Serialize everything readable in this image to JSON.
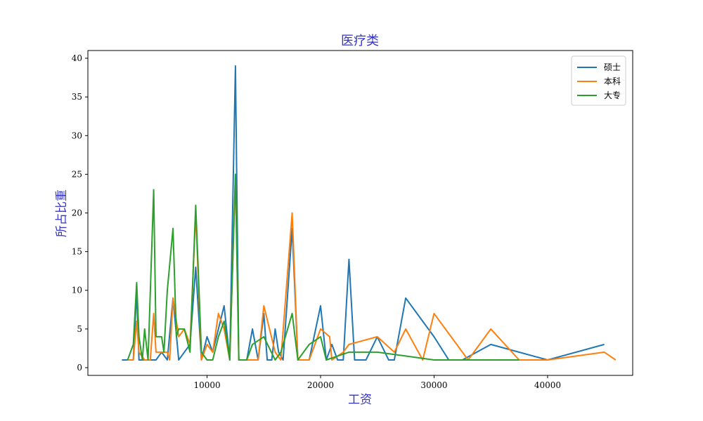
{
  "chart_data": {
    "type": "line",
    "title": "医疗类",
    "xlabel": "工资",
    "ylabel": "所占比重",
    "xlim": [
      -500,
      47500
    ],
    "ylim": [
      -1,
      41
    ],
    "xticks": [
      10000,
      20000,
      30000,
      40000
    ],
    "yticks": [
      0,
      5,
      10,
      15,
      20,
      25,
      30,
      35,
      40
    ],
    "grid": false,
    "legend_position": "top-right",
    "series": [
      {
        "name": "硕士",
        "color": "#1f77b4",
        "points": [
          [
            2500,
            1
          ],
          [
            3000,
            1
          ],
          [
            3500,
            1
          ],
          [
            3800,
            10
          ],
          [
            4000,
            1
          ],
          [
            4500,
            1
          ],
          [
            5000,
            1
          ],
          [
            5500,
            1
          ],
          [
            6000,
            2
          ],
          [
            6500,
            1
          ],
          [
            7000,
            9
          ],
          [
            7500,
            1
          ],
          [
            8000,
            2
          ],
          [
            8500,
            3
          ],
          [
            9000,
            13
          ],
          [
            9500,
            1
          ],
          [
            10000,
            4
          ],
          [
            10500,
            2
          ],
          [
            11000,
            5
          ],
          [
            11500,
            8
          ],
          [
            12000,
            1
          ],
          [
            12500,
            39
          ],
          [
            12800,
            1
          ],
          [
            13500,
            1
          ],
          [
            14000,
            5
          ],
          [
            14500,
            1
          ],
          [
            15000,
            7
          ],
          [
            15300,
            1
          ],
          [
            15700,
            1
          ],
          [
            16000,
            5
          ],
          [
            16300,
            2
          ],
          [
            16700,
            1
          ],
          [
            17500,
            18
          ],
          [
            18000,
            1
          ],
          [
            19000,
            1
          ],
          [
            20000,
            8
          ],
          [
            20500,
            1
          ],
          [
            21000,
            3
          ],
          [
            21500,
            1
          ],
          [
            22000,
            1
          ],
          [
            22500,
            14
          ],
          [
            23000,
            1
          ],
          [
            24000,
            1
          ],
          [
            25000,
            4
          ],
          [
            26000,
            1
          ],
          [
            26500,
            1
          ],
          [
            27500,
            9
          ],
          [
            30000,
            4
          ],
          [
            31300,
            1
          ],
          [
            32500,
            1
          ],
          [
            35000,
            3
          ],
          [
            40000,
            1
          ],
          [
            45000,
            3
          ]
        ]
      },
      {
        "name": "本科",
        "color": "#ff7f0e",
        "points": [
          [
            3000,
            1
          ],
          [
            3500,
            1
          ],
          [
            3800,
            6
          ],
          [
            4000,
            2
          ],
          [
            4500,
            1
          ],
          [
            5000,
            1
          ],
          [
            5300,
            7
          ],
          [
            5500,
            2
          ],
          [
            6000,
            2
          ],
          [
            6500,
            2
          ],
          [
            6700,
            1
          ],
          [
            7000,
            9
          ],
          [
            7500,
            4
          ],
          [
            8000,
            5
          ],
          [
            8500,
            3
          ],
          [
            9000,
            20
          ],
          [
            9500,
            1
          ],
          [
            10000,
            3
          ],
          [
            10500,
            2
          ],
          [
            11000,
            7
          ],
          [
            11500,
            5
          ],
          [
            12000,
            1
          ],
          [
            12500,
            25
          ],
          [
            12800,
            1
          ],
          [
            13500,
            1
          ],
          [
            14500,
            1
          ],
          [
            15000,
            8
          ],
          [
            16000,
            2
          ],
          [
            16500,
            1
          ],
          [
            17500,
            20
          ],
          [
            18000,
            1
          ],
          [
            19000,
            1
          ],
          [
            20000,
            5
          ],
          [
            20800,
            4
          ],
          [
            21000,
            1
          ],
          [
            22000,
            2
          ],
          [
            22500,
            3
          ],
          [
            25000,
            4
          ],
          [
            26500,
            2
          ],
          [
            27500,
            5
          ],
          [
            29000,
            1
          ],
          [
            30000,
            7
          ],
          [
            33000,
            1
          ],
          [
            35000,
            5
          ],
          [
            37500,
            1
          ],
          [
            40000,
            1
          ],
          [
            45000,
            2
          ],
          [
            46000,
            1
          ]
        ]
      },
      {
        "name": "大专",
        "color": "#2ca02c",
        "points": [
          [
            3000,
            1
          ],
          [
            3500,
            3
          ],
          [
            3800,
            11
          ],
          [
            4000,
            4
          ],
          [
            4300,
            1
          ],
          [
            4500,
            5
          ],
          [
            4800,
            1
          ],
          [
            5300,
            23
          ],
          [
            5500,
            4
          ],
          [
            6000,
            4
          ],
          [
            6200,
            2
          ],
          [
            6500,
            10
          ],
          [
            7000,
            18
          ],
          [
            7300,
            4
          ],
          [
            7500,
            5
          ],
          [
            8000,
            5
          ],
          [
            8500,
            2
          ],
          [
            9000,
            21
          ],
          [
            9500,
            2
          ],
          [
            10000,
            1
          ],
          [
            10500,
            1
          ],
          [
            11000,
            4
          ],
          [
            11500,
            6
          ],
          [
            12000,
            1
          ],
          [
            12500,
            25
          ],
          [
            12800,
            1
          ],
          [
            13500,
            1
          ],
          [
            14000,
            3
          ],
          [
            15000,
            4
          ],
          [
            16000,
            1
          ],
          [
            16500,
            2
          ],
          [
            17500,
            7
          ],
          [
            18000,
            1
          ],
          [
            19000,
            3
          ],
          [
            20000,
            4
          ],
          [
            20500,
            1
          ],
          [
            22500,
            2
          ],
          [
            25000,
            2
          ],
          [
            27500,
            1.5
          ],
          [
            30000,
            1
          ],
          [
            35000,
            1
          ],
          [
            37500,
            1
          ]
        ]
      }
    ]
  }
}
